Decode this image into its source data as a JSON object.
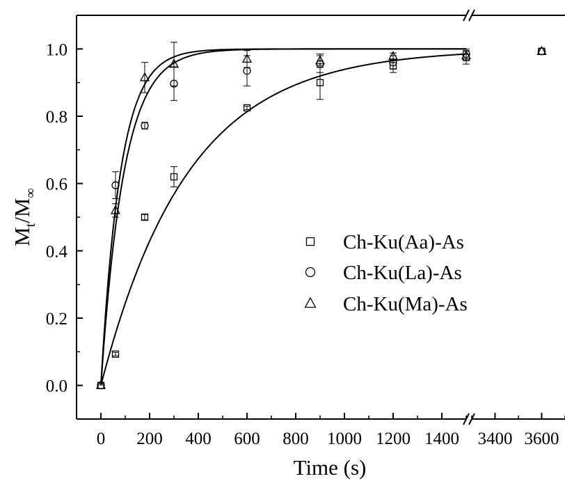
{
  "chart_data": {
    "type": "scatter",
    "xlabel": "Time (s)",
    "ylabel_main": "M",
    "ylabel_sub_t": "t",
    "ylabel_slash": "/M",
    "ylabel_sub_inf": "∞",
    "x_axis": {
      "broken": true,
      "break_from": 1500,
      "break_to": 3300,
      "segment1_range": [
        -100,
        1500
      ],
      "segment2_range": [
        3300,
        3700
      ],
      "tick_values": [
        0,
        200,
        400,
        600,
        800,
        1000,
        1200,
        1400,
        3400,
        3600
      ],
      "tick_labels": [
        "0",
        "200",
        "400",
        "600",
        "800",
        "1000",
        "1200",
        "1400",
        "3400",
        "3600"
      ]
    },
    "y_axis": {
      "range": [
        -0.1,
        1.1
      ],
      "tick_values": [
        0.0,
        0.2,
        0.4,
        0.6,
        0.8,
        1.0
      ],
      "tick_labels": [
        "0.0",
        "0.2",
        "0.4",
        "0.6",
        "0.8",
        "1.0"
      ]
    },
    "grid": false,
    "legend_position": "center-right",
    "series": [
      {
        "name": "Ch-Ku(Aa)-As",
        "marker": "square",
        "points": [
          {
            "x": 0,
            "y": 0.0,
            "err": 0.0
          },
          {
            "x": 60,
            "y": 0.093,
            "err": 0.005
          },
          {
            "x": 180,
            "y": 0.5,
            "err": 0.008
          },
          {
            "x": 300,
            "y": 0.62,
            "err": 0.03
          },
          {
            "x": 600,
            "y": 0.825,
            "err": 0.005
          },
          {
            "x": 900,
            "y": 0.9,
            "err": 0.05
          },
          {
            "x": 1200,
            "y": 0.95,
            "err": 0.02
          },
          {
            "x": 1500,
            "y": 0.975,
            "err": 0.02
          },
          {
            "x": 3600,
            "y": 0.993,
            "err": 0.003
          }
        ],
        "fit": {
          "model": "1 - exp(-k t)",
          "k": 0.0028
        }
      },
      {
        "name": "Ch-Ku(La)-As",
        "marker": "circle",
        "points": [
          {
            "x": 0,
            "y": 0.0,
            "err": 0.0
          },
          {
            "x": 60,
            "y": 0.595,
            "err": 0.04
          },
          {
            "x": 180,
            "y": 0.772,
            "err": 0.01
          },
          {
            "x": 300,
            "y": 0.897,
            "err": 0.05
          },
          {
            "x": 600,
            "y": 0.935,
            "err": 0.045
          },
          {
            "x": 900,
            "y": 0.955,
            "err": 0.025
          },
          {
            "x": 1200,
            "y": 0.96,
            "err": 0.02
          },
          {
            "x": 1500,
            "y": 0.985,
            "err": 0.015
          },
          {
            "x": 3600,
            "y": 0.993,
            "err": 0.003
          }
        ],
        "fit": {
          "model": "1 - exp(-k t)",
          "k": 0.0106
        }
      },
      {
        "name": "Ch-Ku(Ma)-As",
        "marker": "triangle",
        "points": [
          {
            "x": 0,
            "y": 0.0,
            "err": 0.0
          },
          {
            "x": 60,
            "y": 0.52,
            "err": 0.02
          },
          {
            "x": 180,
            "y": 0.915,
            "err": 0.045
          },
          {
            "x": 300,
            "y": 0.955,
            "err": 0.065
          },
          {
            "x": 600,
            "y": 0.97,
            "err": 0.025
          },
          {
            "x": 900,
            "y": 0.965,
            "err": 0.02
          },
          {
            "x": 1200,
            "y": 0.978,
            "err": 0.01
          },
          {
            "x": 1500,
            "y": 0.98,
            "err": 0.015
          },
          {
            "x": 3600,
            "y": 0.993,
            "err": 0.003
          }
        ],
        "fit": {
          "model": "1 - exp(-k t)",
          "k": 0.0125
        }
      }
    ]
  }
}
